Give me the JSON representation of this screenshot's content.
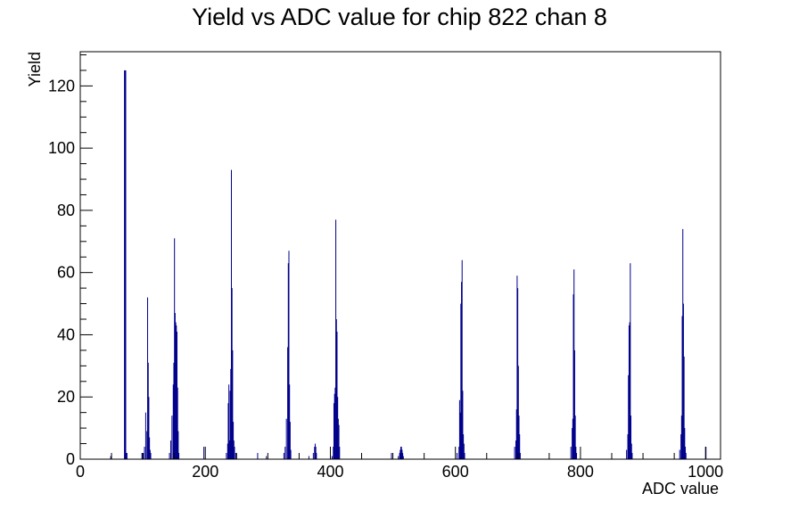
{
  "chart_data": {
    "type": "bar",
    "title": "Yield vs ADC value for chip 822 chan 8",
    "xlabel": "ADC value",
    "ylabel": "Yield",
    "xlim": [
      0,
      1024
    ],
    "ylim": [
      0,
      131
    ],
    "x_ticks": [
      0,
      200,
      400,
      600,
      800,
      1000
    ],
    "y_ticks": [
      0,
      20,
      40,
      60,
      80,
      100,
      120
    ],
    "grid": false,
    "legend": "none",
    "bar_color": "#00008b",
    "bins": [
      [
        48,
        1
      ],
      [
        70,
        125
      ],
      [
        71,
        125
      ],
      [
        72,
        125
      ],
      [
        73,
        2
      ],
      [
        74,
        2
      ],
      [
        98,
        2
      ],
      [
        100,
        2
      ],
      [
        102,
        4
      ],
      [
        104,
        15
      ],
      [
        106,
        9
      ],
      [
        107,
        52
      ],
      [
        108,
        31
      ],
      [
        109,
        20
      ],
      [
        110,
        7
      ],
      [
        111,
        3
      ],
      [
        112,
        2
      ],
      [
        142,
        2
      ],
      [
        144,
        6
      ],
      [
        146,
        14
      ],
      [
        148,
        24
      ],
      [
        149,
        31
      ],
      [
        150,
        71
      ],
      [
        151,
        47
      ],
      [
        152,
        44
      ],
      [
        153,
        43
      ],
      [
        154,
        41
      ],
      [
        155,
        23
      ],
      [
        156,
        9
      ],
      [
        157,
        2
      ],
      [
        197,
        4
      ],
      [
        233,
        2
      ],
      [
        235,
        5
      ],
      [
        236,
        18
      ],
      [
        237,
        24
      ],
      [
        238,
        6
      ],
      [
        239,
        22
      ],
      [
        240,
        29
      ],
      [
        241,
        93
      ],
      [
        242,
        55
      ],
      [
        243,
        35
      ],
      [
        244,
        12
      ],
      [
        245,
        6
      ],
      [
        246,
        4
      ],
      [
        248,
        2
      ],
      [
        283,
        2
      ],
      [
        297,
        1
      ],
      [
        325,
        2
      ],
      [
        327,
        4
      ],
      [
        329,
        13
      ],
      [
        331,
        36
      ],
      [
        332,
        63
      ],
      [
        333,
        67
      ],
      [
        334,
        24
      ],
      [
        335,
        12
      ],
      [
        336,
        3
      ],
      [
        365,
        1
      ],
      [
        372,
        2
      ],
      [
        374,
        4
      ],
      [
        375,
        5
      ],
      [
        376,
        4
      ],
      [
        377,
        2
      ],
      [
        402,
        1
      ],
      [
        404,
        4
      ],
      [
        405,
        18
      ],
      [
        406,
        21
      ],
      [
        407,
        23
      ],
      [
        408,
        77
      ],
      [
        409,
        45
      ],
      [
        410,
        41
      ],
      [
        411,
        20
      ],
      [
        412,
        13
      ],
      [
        413,
        11
      ],
      [
        414,
        4
      ],
      [
        497,
        2
      ],
      [
        508,
        1
      ],
      [
        510,
        2
      ],
      [
        511,
        3
      ],
      [
        512,
        4
      ],
      [
        513,
        4
      ],
      [
        514,
        3
      ],
      [
        515,
        2
      ],
      [
        516,
        1
      ],
      [
        602,
        2
      ],
      [
        605,
        4
      ],
      [
        606,
        19
      ],
      [
        607,
        15
      ],
      [
        608,
        50
      ],
      [
        609,
        57
      ],
      [
        610,
        64
      ],
      [
        611,
        22
      ],
      [
        612,
        8
      ],
      [
        613,
        5
      ],
      [
        614,
        2
      ],
      [
        694,
        4
      ],
      [
        696,
        6
      ],
      [
        697,
        16
      ],
      [
        698,
        59
      ],
      [
        699,
        55
      ],
      [
        700,
        30
      ],
      [
        701,
        14
      ],
      [
        702,
        8
      ],
      [
        703,
        2
      ],
      [
        784,
        4
      ],
      [
        786,
        10
      ],
      [
        787,
        13
      ],
      [
        788,
        53
      ],
      [
        789,
        61
      ],
      [
        790,
        35
      ],
      [
        791,
        14
      ],
      [
        792,
        4
      ],
      [
        793,
        2
      ],
      [
        873,
        3
      ],
      [
        875,
        8
      ],
      [
        876,
        27
      ],
      [
        877,
        43
      ],
      [
        878,
        44
      ],
      [
        879,
        63
      ],
      [
        880,
        14
      ],
      [
        881,
        5
      ],
      [
        882,
        2
      ],
      [
        958,
        3
      ],
      [
        960,
        8
      ],
      [
        961,
        14
      ],
      [
        962,
        46
      ],
      [
        963,
        74
      ],
      [
        964,
        50
      ],
      [
        965,
        33
      ],
      [
        966,
        10
      ],
      [
        967,
        4
      ],
      [
        968,
        2
      ],
      [
        1000,
        4
      ]
    ]
  }
}
